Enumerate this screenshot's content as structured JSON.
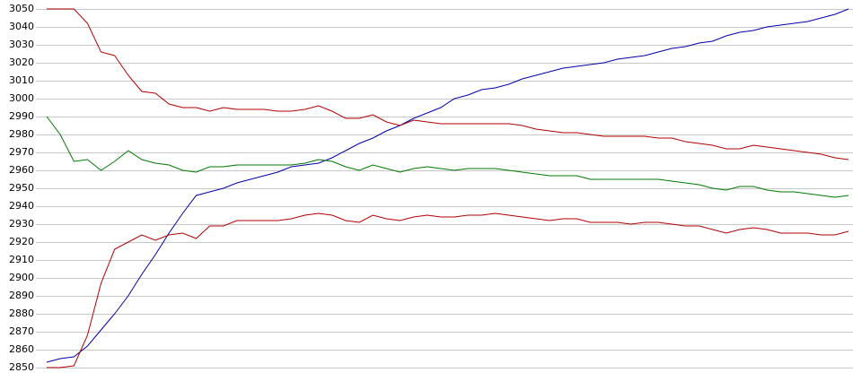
{
  "chart_data": {
    "type": "line",
    "ylim": [
      2850,
      3050
    ],
    "yticks": [
      2850,
      2860,
      2870,
      2880,
      2890,
      2900,
      2910,
      2920,
      2930,
      2940,
      2950,
      2960,
      2970,
      2980,
      2990,
      3000,
      3010,
      3020,
      3030,
      3040,
      3050
    ],
    "grid": true,
    "series": [
      {
        "color": "#0000a8",
        "values": [
          2853,
          2855,
          2856,
          2862,
          2871,
          2880,
          2890,
          2902,
          2913,
          2925,
          2936,
          2946,
          2948,
          2950,
          2953,
          2955,
          2957,
          2959,
          2962,
          2963,
          2964,
          2967,
          2971,
          2975,
          2978,
          2982,
          2985,
          2989,
          2992,
          2995,
          3000,
          3002,
          3005,
          3006,
          3008,
          3011,
          3013,
          3015,
          3017,
          3018,
          3019,
          3020,
          3022,
          3023,
          3024,
          3026,
          3028,
          3029,
          3031,
          3032,
          3035,
          3037,
          3038,
          3040,
          3041,
          3042,
          3043,
          3045,
          3047,
          3050
        ]
      },
      {
        "color": "#b00000",
        "values": [
          3050,
          3050,
          3050,
          3042,
          3026,
          3024,
          3013,
          3004,
          3003,
          2997,
          2995,
          2995,
          2993,
          2995,
          2994,
          2994,
          2994,
          2993,
          2993,
          2994,
          2996,
          2993,
          2989,
          2989,
          2991,
          2987,
          2985,
          2988,
          2987,
          2986,
          2986,
          2986,
          2986,
          2986,
          2986,
          2985,
          2983,
          2982,
          2981,
          2981,
          2980,
          2979,
          2979,
          2979,
          2979,
          2978,
          2978,
          2976,
          2975,
          2974,
          2972,
          2972,
          2974,
          2973,
          2972,
          2971,
          2970,
          2969,
          2967,
          2966
        ]
      },
      {
        "color": "#007800",
        "values": [
          2990,
          2980,
          2965,
          2966,
          2960,
          2965,
          2971,
          2966,
          2964,
          2963,
          2960,
          2959,
          2962,
          2962,
          2963,
          2963,
          2963,
          2963,
          2963,
          2964,
          2966,
          2965,
          2962,
          2960,
          2963,
          2961,
          2959,
          2961,
          2962,
          2961,
          2960,
          2961,
          2961,
          2961,
          2960,
          2959,
          2958,
          2957,
          2957,
          2957,
          2955,
          2955,
          2955,
          2955,
          2955,
          2955,
          2954,
          2953,
          2952,
          2950,
          2949,
          2951,
          2951,
          2949,
          2948,
          2948,
          2947,
          2946,
          2945,
          2946
        ]
      },
      {
        "color": "#b00000",
        "values": [
          2850,
          2850,
          2851,
          2868,
          2897,
          2916,
          2920,
          2924,
          2921,
          2924,
          2925,
          2922,
          2929,
          2929,
          2932,
          2932,
          2932,
          2932,
          2933,
          2935,
          2936,
          2935,
          2932,
          2931,
          2935,
          2933,
          2932,
          2934,
          2935,
          2934,
          2934,
          2935,
          2935,
          2936,
          2935,
          2934,
          2933,
          2932,
          2933,
          2933,
          2931,
          2931,
          2931,
          2930,
          2931,
          2931,
          2930,
          2929,
          2929,
          2927,
          2925,
          2927,
          2928,
          2927,
          2925,
          2925,
          2925,
          2924,
          2924,
          2926
        ]
      }
    ]
  }
}
